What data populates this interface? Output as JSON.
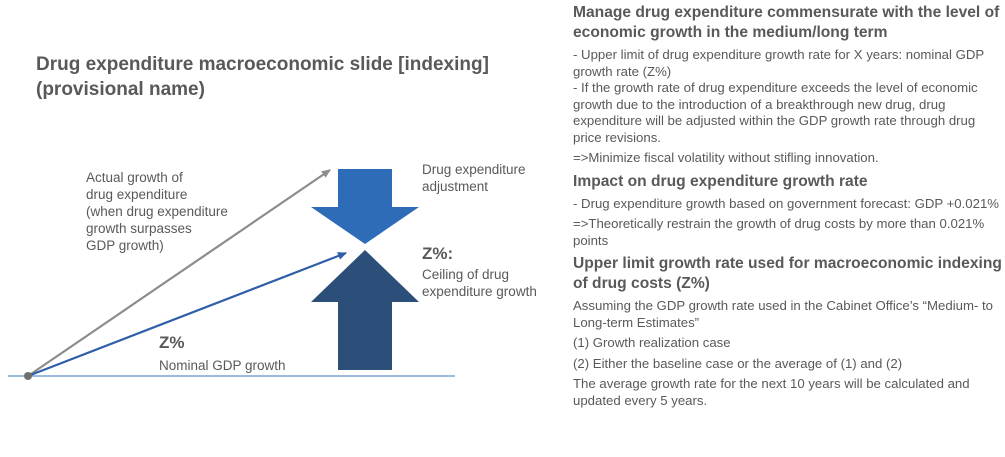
{
  "left": {
    "title": "Drug expenditure macroeconomic slide [indexing] (provisional name)",
    "actual_growth_label": [
      "Actual growth of",
      "drug expenditure",
      "(when drug expenditure",
      "growth surpasses",
      "GDP growth)"
    ],
    "adjustment_label": [
      "Drug expenditure",
      "adjustment"
    ],
    "ceiling_z": "Z%:",
    "ceiling_label": [
      "Ceiling of drug",
      "expenditure growth"
    ],
    "nominal_z": "Z%",
    "nominal_label": "Nominal GDP growth",
    "colors": {
      "gray_arrow": "#8c8c8c",
      "blue_arrow": "#2e5fa8",
      "down_block": "#2e6cb8",
      "up_block": "#2b4f78",
      "baseline": "#7da2cf"
    }
  },
  "right": {
    "h1": "Manage drug expenditure commensurate with the level of economic growth in the medium/long term",
    "p1": "- Upper limit of drug expenditure growth rate for X years: nominal GDP growth rate (Z%)",
    "p2": "- If the growth rate of drug expenditure exceeds the level of economic growth due to the introduction of a breakthrough new drug, drug expenditure will be adjusted within the GDP growth rate through drug price revisions.",
    "p3": "=>Minimize fiscal volatility without stifling innovation.",
    "h2": "Impact on drug expenditure growth rate",
    "p4": "- Drug expenditure growth based on government forecast: GDP +0.021%",
    "p5": "=>Theoretically restrain the growth of drug costs by more than 0.021% points",
    "h3": "Upper limit growth rate used for macroeconomic indexing of drug costs (Z%)",
    "p6": "Assuming the GDP growth rate used in the Cabinet Office’s “Medium- to Long-term Estimates”",
    "p7": "(1) Growth realization case",
    "p8": "(2) Either the baseline case or the average of (1) and (2)",
    "p9": "The average growth rate for the next 10 years will be calculated and updated every 5 years."
  }
}
